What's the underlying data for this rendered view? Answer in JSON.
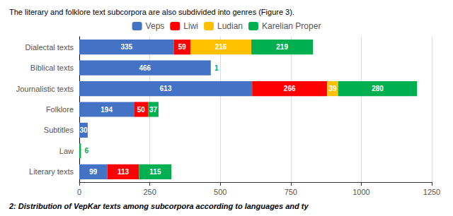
{
  "chart_data": {
    "type": "bar",
    "orientation": "horizontal",
    "stacked": true,
    "annotations": [
      "The literary and folklore text subcorpora are also subdivided into genres (Figure 3).",
      "2: Distribution of VepKar texts among subcorpora according to languages and ty"
    ],
    "categories": [
      "Dialectal texts",
      "Biblical texts",
      "Journalistic texts",
      "Folklore",
      "Subtitles",
      "Law",
      "Literary texts"
    ],
    "series": [
      {
        "name": "Veps",
        "color": "#4472C4",
        "values": [
          335,
          466,
          613,
          194,
          30,
          0,
          99
        ]
      },
      {
        "name": "Liwi",
        "color": "#FF0000",
        "values": [
          59,
          0,
          266,
          50,
          0,
          0,
          113
        ]
      },
      {
        "name": "Ludian",
        "color": "#FFC000",
        "values": [
          216,
          0,
          39,
          0,
          0,
          0,
          0
        ]
      },
      {
        "name": "Karelian Proper",
        "color": "#00B050",
        "values": [
          219,
          1,
          280,
          37,
          0,
          6,
          115
        ]
      }
    ],
    "xlim": [
      0,
      1250
    ],
    "xticks": [
      0,
      250,
      500,
      750,
      1000,
      1250
    ],
    "grid": true,
    "legend": "top",
    "data_labels": true
  }
}
